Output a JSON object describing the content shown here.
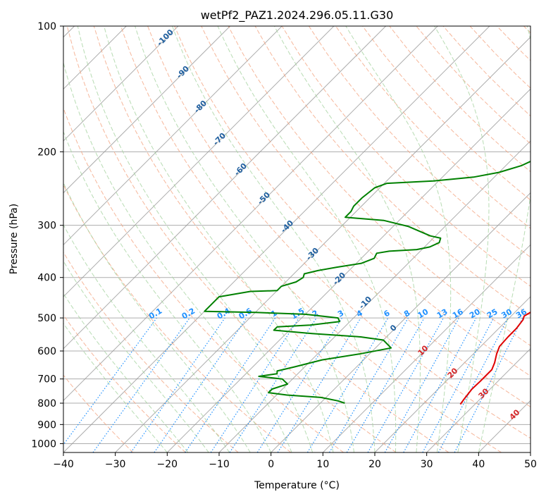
{
  "chart_data": {
    "type": "line",
    "title": "wetPf2_PAZ1.2024.296.05.11.G30",
    "xlabel": "Temperature (°C)",
    "ylabel": "Pressure (hPa)",
    "xlim": [
      -40,
      50
    ],
    "ylim": [
      1050,
      100
    ],
    "y_scale": "log",
    "x_ticks": [
      -40,
      -30,
      -20,
      -10,
      0,
      10,
      20,
      30,
      40,
      50
    ],
    "x_tick_labels": [
      "−40",
      "−30",
      "−20",
      "−10",
      "0",
      "10",
      "20",
      "30",
      "40",
      "50"
    ],
    "y_ticks": [
      100,
      200,
      300,
      400,
      500,
      600,
      700,
      800,
      900,
      1000
    ],
    "y_tick_labels": [
      "100",
      "200",
      "300",
      "400",
      "500",
      "600",
      "700",
      "800",
      "900",
      "1000"
    ],
    "grid": true,
    "series": [
      {
        "color": "#e00000",
        "points": [
          [
            27.2,
            805
          ],
          [
            26.9,
            780
          ],
          [
            26.5,
            740
          ],
          [
            26.6,
            710
          ],
          [
            26.6,
            690
          ],
          [
            26.6,
            665
          ],
          [
            25.8,
            640
          ],
          [
            24.5,
            610
          ],
          [
            23.6,
            585
          ],
          [
            23.4,
            555
          ],
          [
            23.4,
            530
          ],
          [
            23.0,
            505
          ],
          [
            22.5,
            495
          ],
          [
            23.0,
            485
          ],
          [
            24.5,
            475
          ],
          [
            25.0,
            465
          ],
          [
            24.3,
            455
          ],
          [
            22.6,
            435
          ],
          [
            20.6,
            415
          ],
          [
            18.6,
            395
          ],
          [
            17.5,
            383
          ],
          [
            16.2,
            365
          ],
          [
            16.0,
            355
          ],
          [
            15.3,
            340
          ],
          [
            14.3,
            320
          ],
          [
            13.6,
            305
          ],
          [
            12.7,
            285
          ],
          [
            11.3,
            265
          ],
          [
            9.6,
            245
          ],
          [
            7.6,
            225
          ],
          [
            6.0,
            208
          ],
          [
            4.8,
            195
          ],
          [
            4.5,
            185
          ],
          [
            3.8,
            172
          ],
          [
            3.0,
            162
          ],
          [
            1.9,
            152
          ],
          [
            1.2,
            145
          ],
          [
            0.8,
            138
          ],
          [
            0.4,
            130
          ],
          [
            0.2,
            120
          ],
          [
            0.3,
            112
          ],
          [
            0.3,
            105
          ],
          [
            0.3,
            100
          ]
        ]
      },
      {
        "color": "#008000",
        "points": [
          [
            4.7,
            800
          ],
          [
            3.0,
            790
          ],
          [
            -1.0,
            775
          ],
          [
            -8.0,
            765
          ],
          [
            -12.0,
            755
          ],
          [
            -12.0,
            740
          ],
          [
            -10.0,
            720
          ],
          [
            -12.0,
            700
          ],
          [
            -17.0,
            690
          ],
          [
            -14.0,
            680
          ],
          [
            -14.5,
            670
          ],
          [
            -12.0,
            655
          ],
          [
            -8.0,
            630
          ],
          [
            -2.0,
            610
          ],
          [
            3.0,
            590
          ],
          [
            0.0,
            565
          ],
          [
            -5.0,
            555
          ],
          [
            -15.0,
            545
          ],
          [
            -23.0,
            535
          ],
          [
            -23.0,
            525
          ],
          [
            -17.0,
            520
          ],
          [
            -12.0,
            510
          ],
          [
            -13.0,
            500
          ],
          [
            -20.0,
            490
          ],
          [
            -30.0,
            485
          ],
          [
            -40.0,
            482
          ],
          [
            -40.0,
            445
          ],
          [
            -35.0,
            432
          ],
          [
            -30.0,
            430
          ],
          [
            -30.0,
            420
          ],
          [
            -28.0,
            410
          ],
          [
            -27.5,
            400
          ],
          [
            -28.0,
            392
          ],
          [
            -26.0,
            385
          ],
          [
            -23.0,
            378
          ],
          [
            -19.0,
            370
          ],
          [
            -17.5,
            360
          ],
          [
            -18.0,
            350
          ],
          [
            -16.0,
            346
          ],
          [
            -11.0,
            343
          ],
          [
            -9.0,
            338
          ],
          [
            -8.0,
            330
          ],
          [
            -8.6,
            322
          ],
          [
            -11.0,
            318
          ],
          [
            -14.0,
            310
          ],
          [
            -17.0,
            302
          ],
          [
            -23.0,
            292
          ],
          [
            -31.0,
            287
          ],
          [
            -31.0,
            278
          ],
          [
            -31.5,
            270
          ],
          [
            -31.5,
            258
          ],
          [
            -31.0,
            244
          ],
          [
            -29.5,
            238
          ],
          [
            -21.0,
            235
          ],
          [
            -14.0,
            230
          ],
          [
            -10.0,
            224
          ],
          [
            -7.0,
            216
          ],
          [
            -5.5,
            208
          ],
          [
            -4.0,
            203
          ],
          [
            -3.0,
            198
          ],
          [
            -3.5,
            192
          ],
          [
            -4.5,
            188
          ],
          [
            -5.0,
            180
          ],
          [
            -5.0,
            170
          ],
          [
            -5.0,
            160
          ],
          [
            -4.0,
            150
          ],
          [
            -2.0,
            145
          ],
          [
            -2.0,
            135
          ],
          [
            -3.0,
            128
          ],
          [
            -5.0,
            122
          ],
          [
            -5.0,
            117
          ],
          [
            -4.0,
            110
          ],
          [
            -2.0,
            105
          ],
          [
            0.0,
            100
          ]
        ]
      }
    ],
    "dry_adiabat_labels": [
      "-100",
      "-90",
      "-80",
      "-70",
      "-60",
      "-50",
      "-40",
      "-30",
      "-20",
      "-10",
      "0",
      "10",
      "20",
      "30",
      "40"
    ],
    "mixing_ratio_labels": [
      "0.1",
      "0.2",
      "0.4",
      "0.6",
      "1",
      "1.5",
      "2",
      "3",
      "4",
      "6",
      "8",
      "10",
      "13",
      "16",
      "20",
      "25",
      "30",
      "36"
    ],
    "mixing_ratio_values": [
      0.1,
      0.2,
      0.4,
      0.6,
      1,
      1.5,
      2,
      3,
      4,
      6,
      8,
      10,
      13,
      16,
      20,
      25,
      30,
      36
    ],
    "colors": {
      "temperature": "#e00000",
      "dewpoint": "#008000",
      "isotherms": "#999999",
      "dry_adiabats": "#f4a582",
      "moist_adiabats": "#a6d3a0",
      "mixing_ratio": "#1e90ff",
      "dry_adiabat_label_upper": "#1f5f9f",
      "dry_adiabat_label_lower": "#d62728"
    }
  }
}
